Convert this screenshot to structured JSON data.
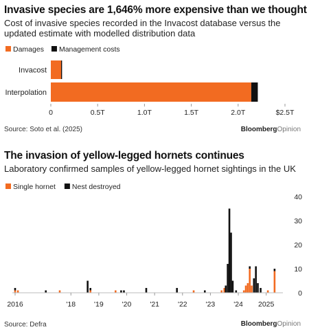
{
  "colors": {
    "damages": "#f26b21",
    "management": "#111111",
    "axis": "#888888"
  },
  "chart_data": [
    {
      "type": "bar",
      "orientation": "horizontal",
      "stacked": true,
      "title": "Invasive species are 1,646% more expensive than we thought",
      "subtitle": "Cost of invasive species recorded in the Invacost database versus the updated estimate with modelled distribution data",
      "categories": [
        "Invacost",
        "Interpolation"
      ],
      "series": [
        {
          "name": "Damages",
          "color": "#f26b21",
          "values": [
            0.11,
            2.14
          ]
        },
        {
          "name": "Management costs",
          "color": "#111111",
          "values": [
            0.01,
            0.07
          ]
        }
      ],
      "xlim": [
        0,
        2.5
      ],
      "ticks": [
        {
          "value": 0,
          "label": "0"
        },
        {
          "value": 0.5,
          "label": "0.5T"
        },
        {
          "value": 1.0,
          "label": "1.0T"
        },
        {
          "value": 1.5,
          "label": "1.5T"
        },
        {
          "value": 2.0,
          "label": "2.0T"
        },
        {
          "value": 2.5,
          "label": "$2.5T"
        }
      ],
      "legend_position": "top-left",
      "source": "Source: Soto et al. (2025)",
      "brand": {
        "bold": "Bloomberg",
        "light": "Opinion"
      }
    },
    {
      "type": "bar",
      "stacked": true,
      "title": "The invasion of yellow-legged hornets continues",
      "subtitle": "Laboratory confirmed samples of yellow-legged hornet sightings in the UK",
      "series_names": [
        "Single hornet",
        "Nest destroyed"
      ],
      "x_unit": "year",
      "xlim": [
        2016,
        2025.5
      ],
      "ylim": [
        0,
        40
      ],
      "yticks": [
        0,
        10,
        20,
        30,
        40
      ],
      "xticks": [
        {
          "value": 2016,
          "label": "2016"
        },
        {
          "value": 2018,
          "label": "'18"
        },
        {
          "value": 2019,
          "label": "'19"
        },
        {
          "value": 2020,
          "label": "'20"
        },
        {
          "value": 2021,
          "label": "'21"
        },
        {
          "value": 2022,
          "label": "'22"
        },
        {
          "value": 2023,
          "label": "'23"
        },
        {
          "value": 2024,
          "label": "'24"
        },
        {
          "value": 2025,
          "label": "2025"
        }
      ],
      "points": [
        {
          "x": 2016.0,
          "single": 1,
          "nest": 1
        },
        {
          "x": 2016.1,
          "single": 1,
          "nest": 0
        },
        {
          "x": 2017.1,
          "single": 0,
          "nest": 1
        },
        {
          "x": 2017.6,
          "single": 1,
          "nest": 0
        },
        {
          "x": 2018.6,
          "single": 0,
          "nest": 5
        },
        {
          "x": 2018.7,
          "single": 1,
          "nest": 1
        },
        {
          "x": 2019.6,
          "single": 1,
          "nest": 0
        },
        {
          "x": 2019.8,
          "single": 0,
          "nest": 1
        },
        {
          "x": 2019.9,
          "single": 0,
          "nest": 1
        },
        {
          "x": 2020.7,
          "single": 0,
          "nest": 2
        },
        {
          "x": 2021.8,
          "single": 0,
          "nest": 2
        },
        {
          "x": 2022.4,
          "single": 1,
          "nest": 0
        },
        {
          "x": 2022.8,
          "single": 0,
          "nest": 1
        },
        {
          "x": 2023.4,
          "single": 1,
          "nest": 0
        },
        {
          "x": 2023.5,
          "single": 2,
          "nest": 0
        },
        {
          "x": 2023.55,
          "single": 0,
          "nest": 3
        },
        {
          "x": 2023.62,
          "single": 0,
          "nest": 12
        },
        {
          "x": 2023.68,
          "single": 0,
          "nest": 35
        },
        {
          "x": 2023.74,
          "single": 0,
          "nest": 25
        },
        {
          "x": 2023.8,
          "single": 0,
          "nest": 5
        },
        {
          "x": 2023.92,
          "single": 0,
          "nest": 1
        },
        {
          "x": 2024.2,
          "single": 1,
          "nest": 0
        },
        {
          "x": 2024.27,
          "single": 3,
          "nest": 0
        },
        {
          "x": 2024.34,
          "single": 4,
          "nest": 0
        },
        {
          "x": 2024.41,
          "single": 10,
          "nest": 1
        },
        {
          "x": 2024.48,
          "single": 3,
          "nest": 0
        },
        {
          "x": 2024.56,
          "single": 0,
          "nest": 6
        },
        {
          "x": 2024.63,
          "single": 0,
          "nest": 11
        },
        {
          "x": 2024.7,
          "single": 0,
          "nest": 4
        },
        {
          "x": 2024.8,
          "single": 0,
          "nest": 2
        },
        {
          "x": 2025.06,
          "single": 1,
          "nest": 0
        },
        {
          "x": 2025.3,
          "single": 9,
          "nest": 1
        }
      ],
      "legend_position": "top-left",
      "source": "Source: Defra",
      "brand": {
        "bold": "Bloomberg",
        "light": "Opinion"
      }
    }
  ]
}
